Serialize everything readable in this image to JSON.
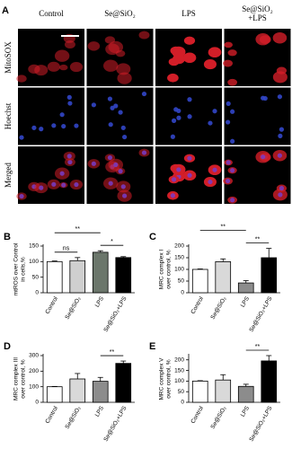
{
  "panel_a": {
    "label": "A",
    "columns": [
      [
        "Control"
      ],
      [
        "Se@SiO₂"
      ],
      [
        "LPS"
      ],
      [
        "Se@SiO₂",
        "+LPS"
      ]
    ],
    "rows": [
      "MitoSOX",
      "Hoechst",
      "Merged"
    ]
  },
  "chart_data": [
    {
      "type": "bar",
      "panel": "B",
      "ylabel": [
        "mtROS over Control",
        "in cells,%"
      ],
      "categories": [
        "Control",
        "Se@SiO₂",
        "LPS",
        "Se@SiO₂+LPS"
      ],
      "values": [
        100,
        103,
        130,
        113
      ],
      "errors": [
        2,
        10,
        5,
        3
      ],
      "colors": [
        "#ffffff",
        "#cfcfcf",
        "#6b766b",
        "#000000"
      ],
      "ylim": [
        0,
        150
      ],
      "yticks": [
        0,
        50,
        100,
        150
      ],
      "annotations": [
        {
          "text": "ns",
          "between": [
            "Control",
            "Se@SiO₂"
          ]
        },
        {
          "text": "*",
          "between": [
            "LPS",
            "Se@SiO₂+LPS"
          ]
        },
        {
          "text": "**",
          "between": [
            "Control",
            "LPS"
          ]
        }
      ]
    },
    {
      "type": "bar",
      "panel": "C",
      "ylabel": [
        "MRC complex I",
        "over control, %"
      ],
      "categories": [
        "Control",
        "Se@SiO₂",
        "LPS",
        "Se@SiO₂+LPS"
      ],
      "values": [
        100,
        133,
        42,
        150
      ],
      "errors": [
        2,
        12,
        10,
        40
      ],
      "colors": [
        "#ffffff",
        "#d9d9d9",
        "#8c8c8c",
        "#000000"
      ],
      "ylim": [
        0,
        200
      ],
      "yticks": [
        0,
        50,
        100,
        150,
        200
      ],
      "annotations": [
        {
          "text": "**",
          "between": [
            "LPS",
            "Se@SiO₂+LPS"
          ]
        },
        {
          "text": "**",
          "between": [
            "Control",
            "LPS"
          ]
        }
      ]
    },
    {
      "type": "bar",
      "panel": "D",
      "ylabel": [
        "MRC complex III",
        "over control, %"
      ],
      "categories": [
        "Control",
        "Se@SiO₂",
        "LPS",
        "Se@SiO₂+LPS"
      ],
      "values": [
        100,
        150,
        135,
        250
      ],
      "errors": [
        2,
        35,
        25,
        15
      ],
      "colors": [
        "#ffffff",
        "#d9d9d9",
        "#8c8c8c",
        "#000000"
      ],
      "ylim": [
        0,
        300
      ],
      "yticks": [
        0,
        100,
        200,
        300
      ],
      "annotations": [
        {
          "text": "**",
          "between": [
            "LPS",
            "Se@SiO₂+LPS"
          ]
        }
      ]
    },
    {
      "type": "bar",
      "panel": "E",
      "ylabel": [
        "MRC complex V",
        "over control, %"
      ],
      "categories": [
        "Control",
        "Se@SiO₂",
        "LPS",
        "Se@SiO₂+LPS"
      ],
      "values": [
        100,
        105,
        75,
        195
      ],
      "errors": [
        2,
        25,
        10,
        25
      ],
      "colors": [
        "#ffffff",
        "#d9d9d9",
        "#8c8c8c",
        "#000000"
      ],
      "ylim": [
        0,
        220
      ],
      "yticks": [
        0,
        50,
        100,
        150,
        200
      ],
      "annotations": [
        {
          "text": "**",
          "between": [
            "LPS",
            "Se@SiO₂+LPS"
          ]
        }
      ]
    }
  ]
}
